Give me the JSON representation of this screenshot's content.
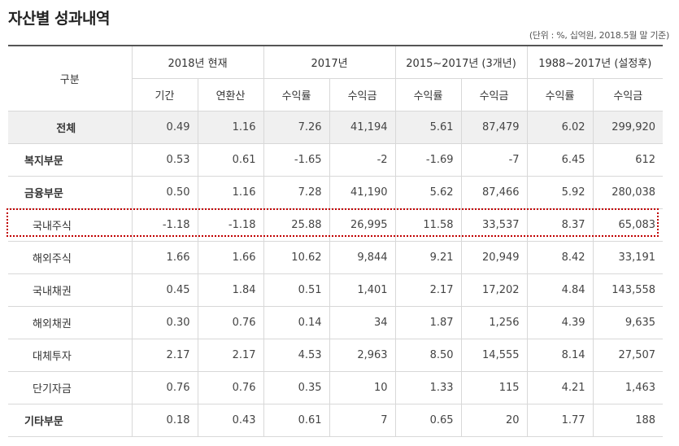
{
  "title": "자산별 성과내역",
  "unit_note": "(단위 : %, 십억원, 2018.5월 말 기준)",
  "header": {
    "category": "구분",
    "groups": [
      "2018년 현재",
      "2017년",
      "2015~2017년 (3개년)",
      "1988~2017년 (설정후)"
    ],
    "subs": [
      "기간",
      "연환산",
      "수익률",
      "수익금",
      "수익률",
      "수익금",
      "수익률",
      "수익금"
    ]
  },
  "rows": [
    {
      "label": "전체",
      "cells": [
        "0.49",
        "1.16",
        "7.26",
        "41,194",
        "5.61",
        "87,479",
        "6.02",
        "299,920"
      ]
    },
    {
      "label": "복지부문",
      "cells": [
        "0.53",
        "0.61",
        "-1.65",
        "-2",
        "-1.69",
        "-7",
        "6.45",
        "612"
      ]
    },
    {
      "label": "금융부문",
      "cells": [
        "0.50",
        "1.16",
        "7.28",
        "41,190",
        "5.62",
        "87,466",
        "5.92",
        "280,038"
      ]
    },
    {
      "label": "국내주식",
      "cells": [
        "-1.18",
        "-1.18",
        "25.88",
        "26,995",
        "11.58",
        "33,537",
        "8.37",
        "65,083"
      ]
    },
    {
      "label": "해외주식",
      "cells": [
        "1.66",
        "1.66",
        "10.62",
        "9,844",
        "9.21",
        "20,949",
        "8.42",
        "33,191"
      ]
    },
    {
      "label": "국내채권",
      "cells": [
        "0.45",
        "1.84",
        "0.51",
        "1,401",
        "2.17",
        "17,202",
        "4.84",
        "143,558"
      ]
    },
    {
      "label": "해외채권",
      "cells": [
        "0.30",
        "0.76",
        "0.14",
        "34",
        "1.87",
        "1,256",
        "4.39",
        "9,635"
      ]
    },
    {
      "label": "대체투자",
      "cells": [
        "2.17",
        "2.17",
        "4.53",
        "2,963",
        "8.50",
        "14,555",
        "8.14",
        "27,507"
      ]
    },
    {
      "label": "단기자금",
      "cells": [
        "0.76",
        "0.76",
        "0.35",
        "10",
        "1.33",
        "115",
        "4.21",
        "1,463"
      ]
    },
    {
      "label": "기타부문",
      "cells": [
        "0.18",
        "0.43",
        "0.61",
        "7",
        "0.65",
        "20",
        "1.77",
        "188"
      ]
    }
  ],
  "colors": {
    "highlight_border": "#c00000",
    "total_row_bg": "#f0f0f0",
    "top_rule": "#555555"
  }
}
